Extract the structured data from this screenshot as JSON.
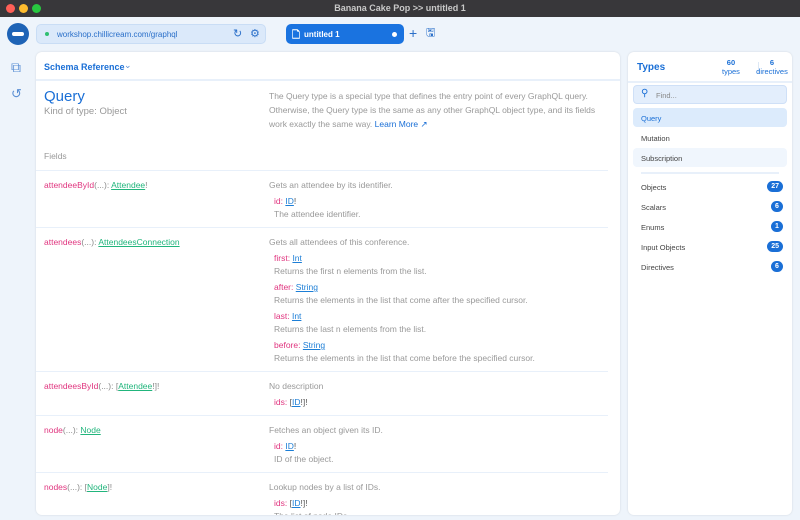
{
  "window": {
    "title": "Banana Cake Pop >> untitled 1"
  },
  "toolbar": {
    "url": "workshop.chillicream.com/graphql",
    "tab_label": "untitled 1"
  },
  "main": {
    "header": "Schema Reference",
    "type_name": "Query",
    "kind": "Kind of type: Object",
    "description": "The Query type is a special type that defines the entry point of every GraphQL query. Otherwise, the Query type is the same as any other GraphQL object type, and its fields work exactly the same way.",
    "learn_more": "Learn More",
    "fields_label": "Fields",
    "fields": [
      {
        "name": "attendeeById",
        "args": "(...)",
        "type_prefix": "",
        "type": "Attendee",
        "type_suffix": "!",
        "description": "Gets an attendee by its identifier.",
        "arguments": [
          {
            "name": "id",
            "type_prefix": "",
            "type": "ID",
            "type_suffix": "!",
            "description": "The attendee identifier."
          }
        ]
      },
      {
        "name": "attendees",
        "args": "(...)",
        "type_prefix": "",
        "type": "AttendeesConnection",
        "type_suffix": "",
        "description": "Gets all attendees of this conference.",
        "arguments": [
          {
            "name": "first",
            "type_prefix": "",
            "type": "Int",
            "type_suffix": "",
            "description": "Returns the first n elements from the list."
          },
          {
            "name": "after",
            "type_prefix": "",
            "type": "String",
            "type_suffix": "",
            "description": "Returns the elements in the list that come after the specified cursor."
          },
          {
            "name": "last",
            "type_prefix": "",
            "type": "Int",
            "type_suffix": "",
            "description": "Returns the last n elements from the list."
          },
          {
            "name": "before",
            "type_prefix": "",
            "type": "String",
            "type_suffix": "",
            "description": "Returns the elements in the list that come before the specified cursor."
          }
        ]
      },
      {
        "name": "attendeesById",
        "args": "(...)",
        "type_prefix": "[",
        "type": "Attendee",
        "type_suffix": "!]!",
        "description": "No description",
        "arguments": [
          {
            "name": "ids",
            "type_prefix": "[",
            "type": "ID",
            "type_suffix": "!]!",
            "description": ""
          }
        ]
      },
      {
        "name": "node",
        "args": "(...)",
        "type_prefix": "",
        "type": "Node",
        "type_suffix": "",
        "description": "Fetches an object given its ID.",
        "arguments": [
          {
            "name": "id",
            "type_prefix": "",
            "type": "ID",
            "type_suffix": "!",
            "description": "ID of the object."
          }
        ]
      },
      {
        "name": "nodes",
        "args": "(...)",
        "type_prefix": "[",
        "type": "Node",
        "type_suffix": "]!",
        "description": "Lookup nodes by a list of IDs.",
        "arguments": [
          {
            "name": "ids",
            "type_prefix": "[",
            "type": "ID",
            "type_suffix": "!]!",
            "description": "The list of node IDs."
          }
        ]
      }
    ]
  },
  "sidebar": {
    "title": "Types",
    "types_count": "60",
    "types_label": "types",
    "directives_count": "6",
    "directives_label": "directives",
    "search_placeholder": "Find...",
    "operations": [
      {
        "label": "Query",
        "active": true
      },
      {
        "label": "Mutation"
      },
      {
        "label": "Subscription"
      }
    ],
    "categories": [
      {
        "label": "Objects",
        "count": "27"
      },
      {
        "label": "Scalars",
        "count": "6"
      },
      {
        "label": "Enums",
        "count": "1"
      },
      {
        "label": "Input Objects",
        "count": "25"
      },
      {
        "label": "Directives",
        "count": "6"
      }
    ]
  },
  "colors": {
    "accent": "#1a73e0",
    "field": "#e0357f",
    "type": "#21b57c",
    "arg_type": "#1c7ed6"
  }
}
